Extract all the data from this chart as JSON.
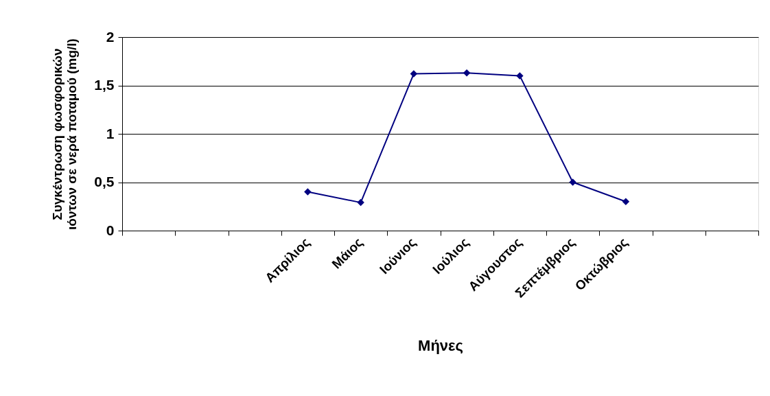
{
  "chart_data": {
    "type": "line",
    "xlabel": "Μήνες",
    "ylabel": "Συγκέντρωση φωσφορικών ιόντων σε νερά ποταμού (mg/l)",
    "categories": [
      null,
      null,
      null,
      "Απρίλιος",
      "Μάιος",
      "Ιούνιος",
      "Ιούλιος",
      "Αύγουστος",
      "Σεπτέμβριος",
      "Οκτώβριος",
      null,
      null
    ],
    "series": [
      {
        "color": "#000080",
        "values": [
          null,
          null,
          null,
          0.4,
          0.29,
          1.62,
          1.63,
          1.6,
          0.5,
          0.3,
          null,
          null
        ]
      }
    ],
    "ylim": [
      0,
      2
    ],
    "yticks": [
      0,
      {
        "value": 0.5,
        "label": "0,5"
      },
      1,
      {
        "value": 1.5,
        "label": "1,5"
      },
      2
    ],
    "grid": "y",
    "marker": "diamond",
    "line_style": "solid"
  }
}
